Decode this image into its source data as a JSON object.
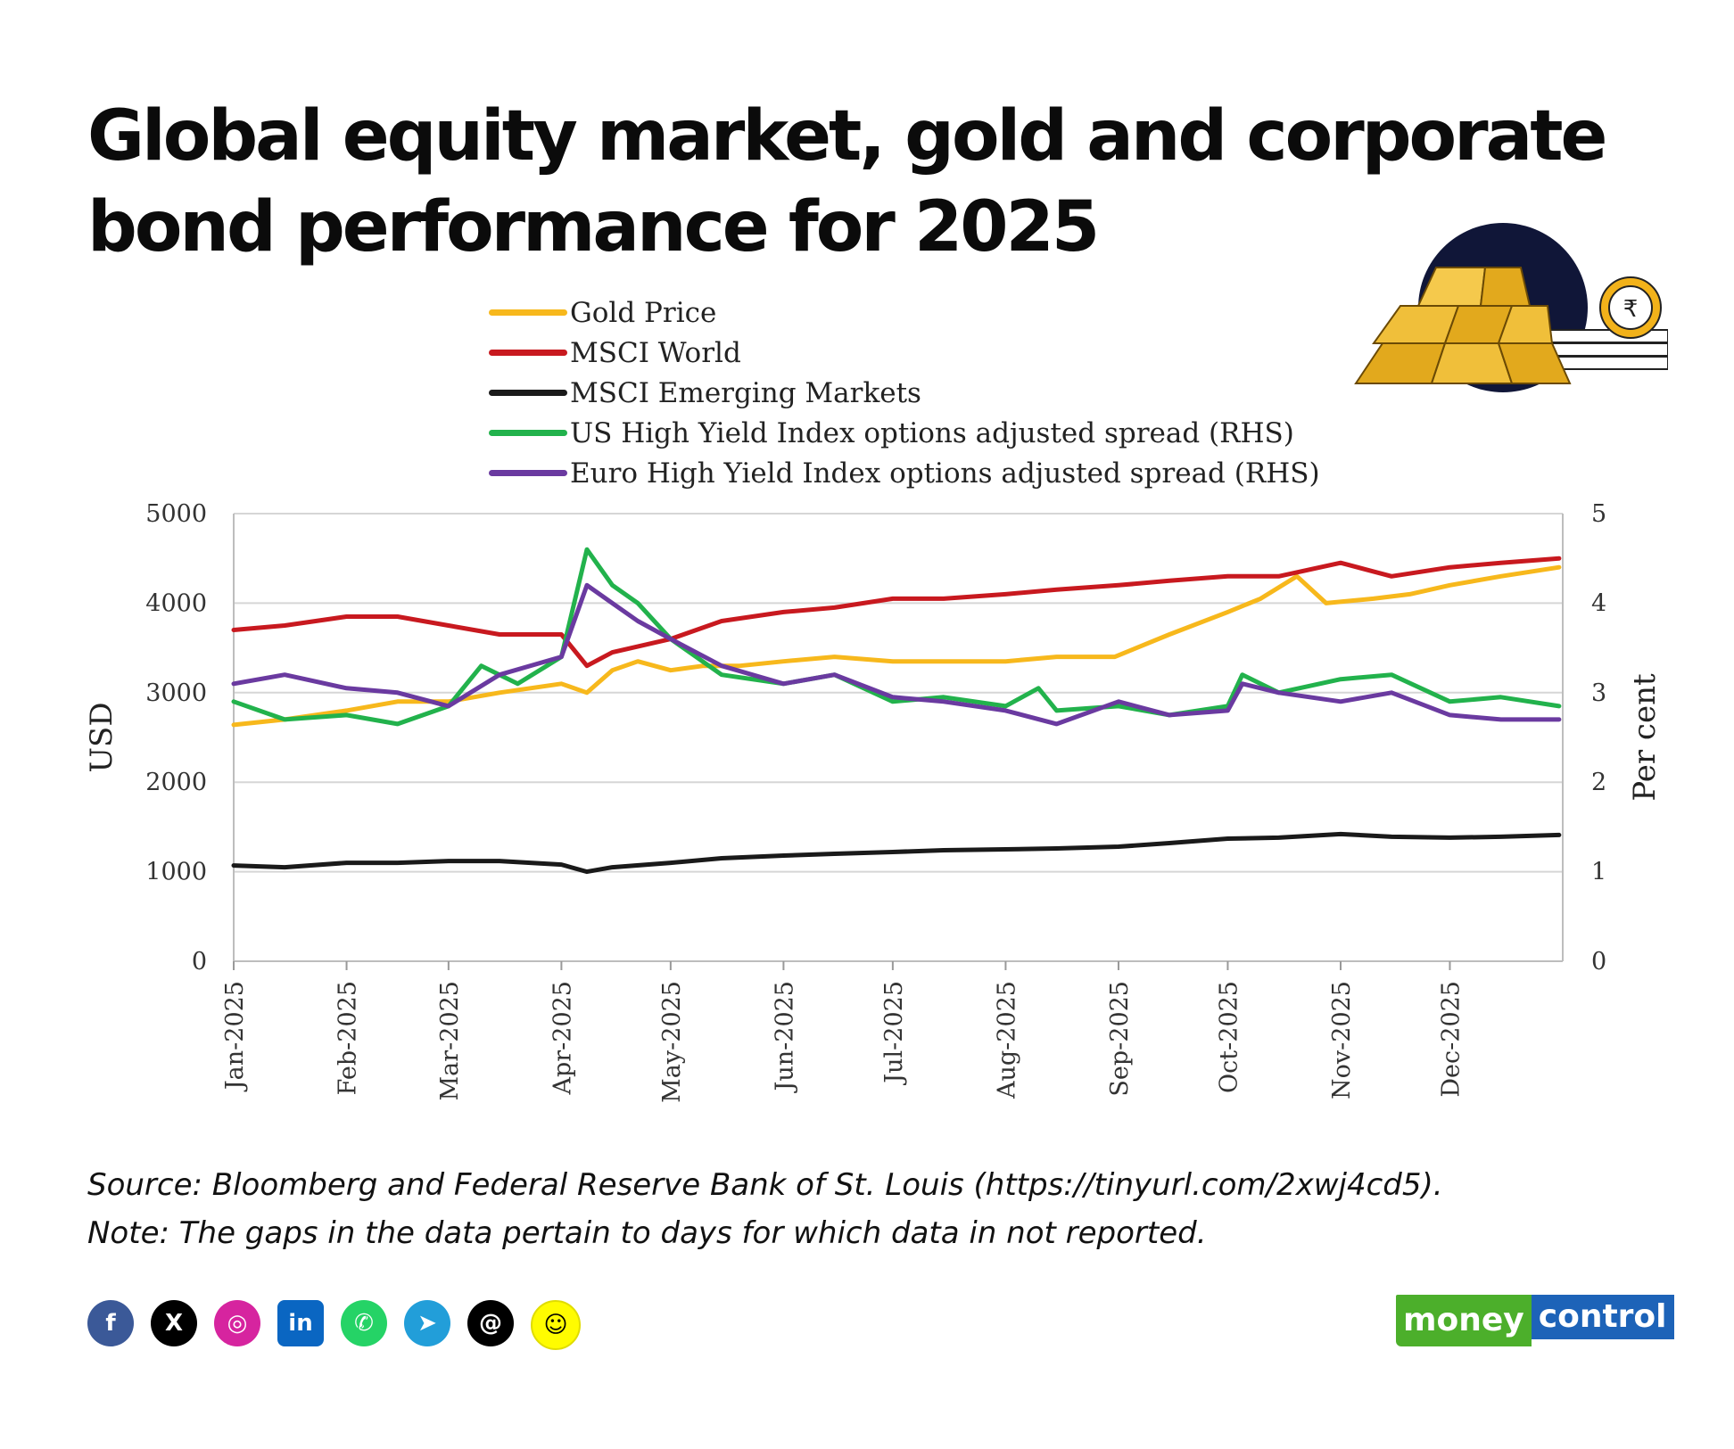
{
  "title_lines": [
    "Global equity market, gold and corporate",
    "bond performance for 2025"
  ],
  "legend": [
    {
      "label": "Gold Price",
      "color": "#f7b81c"
    },
    {
      "label": "MSCI World",
      "color": "#c8191f"
    },
    {
      "label": "MSCI Emerging Markets",
      "color": "#1a1a1a"
    },
    {
      "label": "US High Yield Index options adjusted spread (RHS)",
      "color": "#22b24c"
    },
    {
      "label": "Euro High Yield Index options adjusted spread (RHS)",
      "color": "#6a3aa0"
    }
  ],
  "source_lines": [
    "Source: Bloomberg and Federal Reserve Bank of St. Louis (https://tinyurl.com/2xwj4cd5).",
    "Note: The gaps in the data pertain to days for which data in not reported."
  ],
  "social_icons": [
    "facebook-icon",
    "x-icon",
    "instagram-icon",
    "linkedin-icon",
    "whatsapp-icon",
    "telegram-icon",
    "threads-icon",
    "snapchat-icon"
  ],
  "brand": {
    "part1": "money",
    "part2": "control"
  },
  "chart_data": {
    "type": "line",
    "ylabel": "USD",
    "y2label": "Per cent",
    "ylim": [
      0,
      5000
    ],
    "y2lim": [
      0,
      5
    ],
    "yticks": [
      "0",
      "1000",
      "2000",
      "3000",
      "4000",
      "5000"
    ],
    "y2ticks": [
      "0",
      "1",
      "2",
      "3",
      "4",
      "5"
    ],
    "grid": true,
    "x": [
      "Jan-2025",
      "Feb-2025",
      "Mar-2025",
      "Apr-2025",
      "May-2025",
      "Jun-2025",
      "Jul-2025",
      "Aug-2025",
      "Sep-2025",
      "Oct-2025",
      "Nov-2025",
      "Dec-2025"
    ],
    "series": [
      {
        "name": "Gold Price",
        "axis": "left",
        "color": "#f7b81c",
        "points": [
          [
            "2025-01-01",
            2640
          ],
          [
            "2025-01-15",
            2700
          ],
          [
            "2025-02-01",
            2800
          ],
          [
            "2025-02-15",
            2900
          ],
          [
            "2025-03-01",
            2900
          ],
          [
            "2025-03-15",
            3000
          ],
          [
            "2025-04-01",
            3100
          ],
          [
            "2025-04-08",
            3000
          ],
          [
            "2025-04-15",
            3250
          ],
          [
            "2025-04-22",
            3350
          ],
          [
            "2025-05-01",
            3250
          ],
          [
            "2025-05-10",
            3300
          ],
          [
            "2025-05-20",
            3300
          ],
          [
            "2025-06-01",
            3350
          ],
          [
            "2025-06-15",
            3400
          ],
          [
            "2025-07-01",
            3350
          ],
          [
            "2025-07-15",
            3350
          ],
          [
            "2025-08-01",
            3350
          ],
          [
            "2025-08-15",
            3400
          ],
          [
            "2025-08-31",
            3400
          ],
          [
            "2025-09-15",
            3650
          ],
          [
            "2025-10-01",
            3900
          ],
          [
            "2025-10-10",
            4050
          ],
          [
            "2025-10-20",
            4300
          ],
          [
            "2025-10-28",
            4000
          ],
          [
            "2025-11-10",
            4050
          ],
          [
            "2025-11-20",
            4100
          ],
          [
            "2025-12-01",
            4200
          ],
          [
            "2025-12-15",
            4300
          ],
          [
            "2025-12-31",
            4400
          ]
        ]
      },
      {
        "name": "MSCI World",
        "axis": "left",
        "color": "#c8191f",
        "points": [
          [
            "2025-01-01",
            3700
          ],
          [
            "2025-01-15",
            3750
          ],
          [
            "2025-02-01",
            3850
          ],
          [
            "2025-02-15",
            3850
          ],
          [
            "2025-03-01",
            3750
          ],
          [
            "2025-03-15",
            3650
          ],
          [
            "2025-04-01",
            3650
          ],
          [
            "2025-04-08",
            3300
          ],
          [
            "2025-04-15",
            3450
          ],
          [
            "2025-05-01",
            3600
          ],
          [
            "2025-05-15",
            3800
          ],
          [
            "2025-06-01",
            3900
          ],
          [
            "2025-06-15",
            3950
          ],
          [
            "2025-07-01",
            4050
          ],
          [
            "2025-07-15",
            4050
          ],
          [
            "2025-08-01",
            4100
          ],
          [
            "2025-08-15",
            4150
          ],
          [
            "2025-09-01",
            4200
          ],
          [
            "2025-09-15",
            4250
          ],
          [
            "2025-10-01",
            4300
          ],
          [
            "2025-10-15",
            4300
          ],
          [
            "2025-11-01",
            4450
          ],
          [
            "2025-11-15",
            4300
          ],
          [
            "2025-12-01",
            4400
          ],
          [
            "2025-12-15",
            4450
          ],
          [
            "2025-12-31",
            4500
          ]
        ]
      },
      {
        "name": "MSCI Emerging Markets",
        "axis": "left",
        "color": "#1a1a1a",
        "points": [
          [
            "2025-01-01",
            1070
          ],
          [
            "2025-01-15",
            1050
          ],
          [
            "2025-02-01",
            1100
          ],
          [
            "2025-02-15",
            1100
          ],
          [
            "2025-03-01",
            1120
          ],
          [
            "2025-03-15",
            1120
          ],
          [
            "2025-04-01",
            1080
          ],
          [
            "2025-04-08",
            1000
          ],
          [
            "2025-04-15",
            1050
          ],
          [
            "2025-05-01",
            1100
          ],
          [
            "2025-05-15",
            1150
          ],
          [
            "2025-06-01",
            1180
          ],
          [
            "2025-06-15",
            1200
          ],
          [
            "2025-07-01",
            1220
          ],
          [
            "2025-07-15",
            1240
          ],
          [
            "2025-08-01",
            1250
          ],
          [
            "2025-08-15",
            1260
          ],
          [
            "2025-09-01",
            1280
          ],
          [
            "2025-09-15",
            1320
          ],
          [
            "2025-10-01",
            1370
          ],
          [
            "2025-10-15",
            1380
          ],
          [
            "2025-11-01",
            1420
          ],
          [
            "2025-11-15",
            1390
          ],
          [
            "2025-12-01",
            1380
          ],
          [
            "2025-12-15",
            1390
          ],
          [
            "2025-12-31",
            1410
          ]
        ]
      },
      {
        "name": "US High Yield Index options adjusted spread (RHS)",
        "axis": "right",
        "color": "#22b24c",
        "points": [
          [
            "2025-01-01",
            2.9
          ],
          [
            "2025-01-15",
            2.7
          ],
          [
            "2025-02-01",
            2.75
          ],
          [
            "2025-02-15",
            2.65
          ],
          [
            "2025-03-01",
            2.85
          ],
          [
            "2025-03-10",
            3.3
          ],
          [
            "2025-03-20",
            3.1
          ],
          [
            "2025-04-01",
            3.4
          ],
          [
            "2025-04-08",
            4.6
          ],
          [
            "2025-04-15",
            4.2
          ],
          [
            "2025-04-22",
            4.0
          ],
          [
            "2025-05-01",
            3.6
          ],
          [
            "2025-05-15",
            3.2
          ],
          [
            "2025-06-01",
            3.1
          ],
          [
            "2025-06-15",
            3.2
          ],
          [
            "2025-07-01",
            2.9
          ],
          [
            "2025-07-15",
            2.95
          ],
          [
            "2025-08-01",
            2.85
          ],
          [
            "2025-08-10",
            3.05
          ],
          [
            "2025-08-15",
            2.8
          ],
          [
            "2025-09-01",
            2.85
          ],
          [
            "2025-09-15",
            2.75
          ],
          [
            "2025-10-01",
            2.85
          ],
          [
            "2025-10-05",
            3.2
          ],
          [
            "2025-10-15",
            3.0
          ],
          [
            "2025-11-01",
            3.15
          ],
          [
            "2025-11-15",
            3.2
          ],
          [
            "2025-12-01",
            2.9
          ],
          [
            "2025-12-15",
            2.95
          ],
          [
            "2025-12-31",
            2.85
          ]
        ]
      },
      {
        "name": "Euro High Yield Index options adjusted spread (RHS)",
        "axis": "right",
        "color": "#6a3aa0",
        "points": [
          [
            "2025-01-01",
            3.1
          ],
          [
            "2025-01-15",
            3.2
          ],
          [
            "2025-02-01",
            3.05
          ],
          [
            "2025-02-15",
            3.0
          ],
          [
            "2025-03-01",
            2.85
          ],
          [
            "2025-03-15",
            3.2
          ],
          [
            "2025-04-01",
            3.4
          ],
          [
            "2025-04-08",
            4.2
          ],
          [
            "2025-04-15",
            4.0
          ],
          [
            "2025-04-22",
            3.8
          ],
          [
            "2025-05-01",
            3.6
          ],
          [
            "2025-05-15",
            3.3
          ],
          [
            "2025-06-01",
            3.1
          ],
          [
            "2025-06-15",
            3.2
          ],
          [
            "2025-07-01",
            2.95
          ],
          [
            "2025-07-15",
            2.9
          ],
          [
            "2025-08-01",
            2.8
          ],
          [
            "2025-08-15",
            2.65
          ],
          [
            "2025-09-01",
            2.9
          ],
          [
            "2025-09-15",
            2.75
          ],
          [
            "2025-10-01",
            2.8
          ],
          [
            "2025-10-05",
            3.1
          ],
          [
            "2025-10-15",
            3.0
          ],
          [
            "2025-11-01",
            2.9
          ],
          [
            "2025-11-15",
            3.0
          ],
          [
            "2025-12-01",
            2.75
          ],
          [
            "2025-12-15",
            2.7
          ],
          [
            "2025-12-31",
            2.7
          ]
        ]
      }
    ]
  }
}
